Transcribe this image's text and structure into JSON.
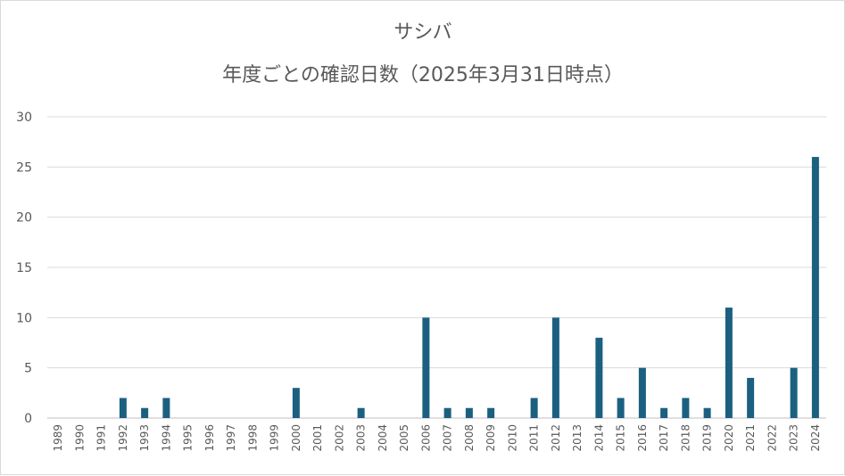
{
  "chart_data": {
    "type": "bar",
    "title": "サシバ",
    "subtitle": "年度ごとの確認日数（2025年3月31日時点）",
    "categories": [
      "1989",
      "1990",
      "1991",
      "1992",
      "1993",
      "1994",
      "1995",
      "1996",
      "1997",
      "1998",
      "1999",
      "2000",
      "2001",
      "2002",
      "2003",
      "2004",
      "2005",
      "2006",
      "2007",
      "2008",
      "2009",
      "2010",
      "2011",
      "2012",
      "2013",
      "2014",
      "2015",
      "2016",
      "2017",
      "2018",
      "2019",
      "2020",
      "2021",
      "2022",
      "2023",
      "2024"
    ],
    "values": [
      0,
      0,
      0,
      2,
      1,
      2,
      0,
      0,
      0,
      0,
      0,
      3,
      0,
      0,
      1,
      0,
      0,
      10,
      1,
      1,
      1,
      0,
      2,
      10,
      0,
      8,
      2,
      5,
      1,
      2,
      1,
      11,
      4,
      0,
      5,
      26
    ],
    "ylim": [
      0,
      30
    ],
    "yticks": [
      0,
      5,
      10,
      15,
      20,
      25,
      30
    ],
    "grid": true,
    "legend": "none",
    "colors": {
      "bar": "#1b6080",
      "grid": "#d9d9d9",
      "text": "#595959",
      "axis": "#bfbfbf"
    }
  }
}
